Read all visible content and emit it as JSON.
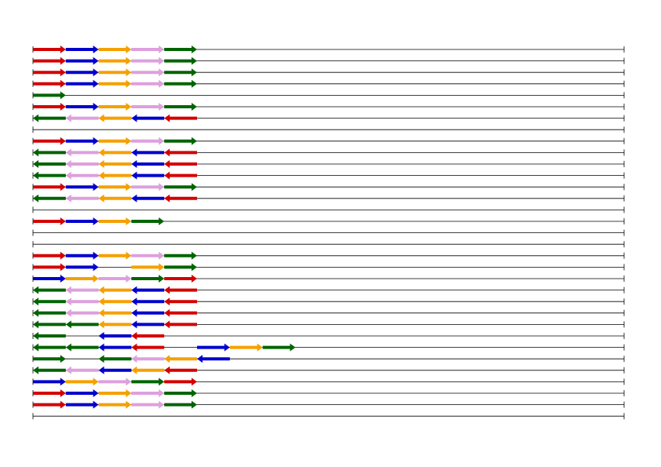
{
  "colors": {
    "R": "#d40000",
    "B": "#0000cc",
    "O": "#f5a000",
    "P": "#dda0dd",
    "G": "#006400",
    "line": "#000000"
  },
  "tracks": [
    {
      "genes": [
        [
          "R",
          0,
          1
        ],
        [
          "B",
          1,
          1
        ],
        [
          "O",
          2,
          1
        ],
        [
          "P",
          3,
          1
        ],
        [
          "G",
          4,
          1
        ]
      ]
    },
    {
      "genes": [
        [
          "R",
          0,
          1
        ],
        [
          "B",
          1,
          1
        ],
        [
          "O",
          2,
          1
        ],
        [
          "P",
          3,
          1
        ],
        [
          "G",
          4,
          1
        ]
      ]
    },
    {
      "genes": [
        [
          "R",
          0,
          1
        ],
        [
          "B",
          1,
          1
        ],
        [
          "O",
          2,
          1
        ],
        [
          "P",
          3,
          1
        ],
        [
          "G",
          4,
          1
        ]
      ]
    },
    {
      "genes": [
        [
          "R",
          0,
          1
        ],
        [
          "B",
          1,
          1
        ],
        [
          "O",
          2,
          1
        ],
        [
          "P",
          3,
          1
        ],
        [
          "G",
          4,
          1
        ]
      ]
    },
    {
      "genes": [
        [
          "G",
          0,
          1
        ]
      ]
    },
    {
      "genes": [
        [
          "R",
          0,
          1
        ],
        [
          "B",
          1,
          1
        ],
        [
          "O",
          2,
          1
        ],
        [
          "P",
          3,
          1
        ],
        [
          "G",
          4,
          1
        ]
      ]
    },
    {
      "genes": [
        [
          "G",
          0,
          -1
        ],
        [
          "P",
          1,
          -1
        ],
        [
          "O",
          2,
          -1
        ],
        [
          "B",
          3,
          -1
        ],
        [
          "R",
          4,
          -1
        ]
      ]
    },
    {
      "genes": []
    },
    {
      "genes": [
        [
          "R",
          0,
          1
        ],
        [
          "B",
          1,
          1
        ],
        [
          "O",
          2,
          1
        ],
        [
          "P",
          3,
          1
        ],
        [
          "G",
          4,
          1
        ]
      ]
    },
    {
      "genes": [
        [
          "G",
          0,
          -1
        ],
        [
          "P",
          1,
          -1
        ],
        [
          "O",
          2,
          -1
        ],
        [
          "B",
          3,
          -1
        ],
        [
          "R",
          4,
          -1
        ]
      ]
    },
    {
      "genes": [
        [
          "G",
          0,
          -1
        ],
        [
          "P",
          1,
          -1
        ],
        [
          "O",
          2,
          -1
        ],
        [
          "B",
          3,
          -1
        ],
        [
          "R",
          4,
          -1
        ]
      ]
    },
    {
      "genes": [
        [
          "G",
          0,
          -1
        ],
        [
          "P",
          1,
          -1
        ],
        [
          "O",
          2,
          -1
        ],
        [
          "B",
          3,
          -1
        ],
        [
          "R",
          4,
          -1
        ]
      ]
    },
    {
      "genes": [
        [
          "R",
          0,
          1
        ],
        [
          "B",
          1,
          1
        ],
        [
          "O",
          2,
          1
        ],
        [
          "P",
          3,
          1
        ],
        [
          "G",
          4,
          1
        ]
      ]
    },
    {
      "genes": [
        [
          "G",
          0,
          -1
        ],
        [
          "P",
          1,
          -1
        ],
        [
          "O",
          2,
          -1
        ],
        [
          "B",
          3,
          -1
        ],
        [
          "R",
          4,
          -1
        ]
      ]
    },
    {
      "genes": []
    },
    {
      "genes": [
        [
          "R",
          0,
          1
        ],
        [
          "B",
          1,
          1
        ],
        [
          "O",
          2,
          1
        ],
        [
          "G",
          3,
          1
        ]
      ]
    },
    {
      "genes": []
    },
    {
      "genes": []
    },
    {
      "genes": [
        [
          "R",
          0,
          1
        ],
        [
          "B",
          1,
          1
        ],
        [
          "O",
          2,
          1
        ],
        [
          "P",
          3,
          1
        ],
        [
          "G",
          4,
          1
        ]
      ]
    },
    {
      "genes": [
        [
          "R",
          0,
          1
        ],
        [
          "B",
          1,
          1
        ],
        [
          "O",
          3,
          1
        ],
        [
          "G",
          4,
          1
        ]
      ]
    },
    {
      "genes": [
        [
          "B",
          0,
          1
        ],
        [
          "O",
          1,
          1
        ],
        [
          "P",
          2,
          1
        ],
        [
          "G",
          3,
          1
        ],
        [
          "R",
          4,
          1
        ]
      ]
    },
    {
      "genes": [
        [
          "G",
          0,
          -1
        ],
        [
          "P",
          1,
          -1
        ],
        [
          "O",
          2,
          -1
        ],
        [
          "B",
          3,
          -1
        ],
        [
          "R",
          4,
          -1
        ]
      ]
    },
    {
      "genes": [
        [
          "G",
          0,
          -1
        ],
        [
          "P",
          1,
          -1
        ],
        [
          "O",
          2,
          -1
        ],
        [
          "B",
          3,
          -1
        ],
        [
          "R",
          4,
          -1
        ]
      ]
    },
    {
      "genes": [
        [
          "G",
          0,
          -1
        ],
        [
          "P",
          1,
          -1
        ],
        [
          "O",
          2,
          -1
        ],
        [
          "B",
          3,
          -1
        ],
        [
          "R",
          4,
          -1
        ]
      ]
    },
    {
      "genes": [
        [
          "G",
          0,
          -1
        ],
        [
          "G",
          1,
          -1
        ],
        [
          "O",
          2,
          -1
        ],
        [
          "B",
          3,
          -1
        ],
        [
          "R",
          4,
          -1
        ]
      ]
    },
    {
      "genes": [
        [
          "G",
          0,
          -1
        ],
        [
          "B",
          2,
          -1
        ],
        [
          "R",
          3,
          -1
        ]
      ]
    },
    {
      "genes": [
        [
          "G",
          0,
          -1
        ],
        [
          "G",
          1,
          -1
        ],
        [
          "B",
          2,
          -1
        ],
        [
          "R",
          3,
          -1
        ],
        [
          "B",
          5,
          1
        ],
        [
          "O",
          6,
          1
        ],
        [
          "G",
          7,
          1
        ]
      ]
    },
    {
      "genes": [
        [
          "G",
          0,
          1
        ],
        [
          "G",
          2,
          -1
        ],
        [
          "P",
          3,
          -1
        ],
        [
          "O",
          4,
          -1
        ],
        [
          "B",
          5,
          -1
        ]
      ]
    },
    {
      "genes": [
        [
          "G",
          0,
          -1
        ],
        [
          "P",
          1,
          -1
        ],
        [
          "B",
          2,
          -1
        ],
        [
          "O",
          3,
          -1
        ],
        [
          "R",
          4,
          -1
        ]
      ]
    },
    {
      "genes": [
        [
          "B",
          0,
          1
        ],
        [
          "O",
          1,
          1
        ],
        [
          "P",
          2,
          1
        ],
        [
          "G",
          3,
          1
        ],
        [
          "R",
          4,
          1
        ]
      ]
    },
    {
      "genes": [
        [
          "R",
          0,
          1
        ],
        [
          "B",
          1,
          1
        ],
        [
          "O",
          2,
          1
        ],
        [
          "P",
          3,
          1
        ],
        [
          "G",
          4,
          1
        ]
      ]
    },
    {
      "genes": [
        [
          "R",
          0,
          1
        ],
        [
          "B",
          1,
          1
        ],
        [
          "O",
          2,
          1
        ],
        [
          "P",
          3,
          1
        ],
        [
          "G",
          4,
          1
        ]
      ]
    },
    {
      "genes": []
    }
  ]
}
